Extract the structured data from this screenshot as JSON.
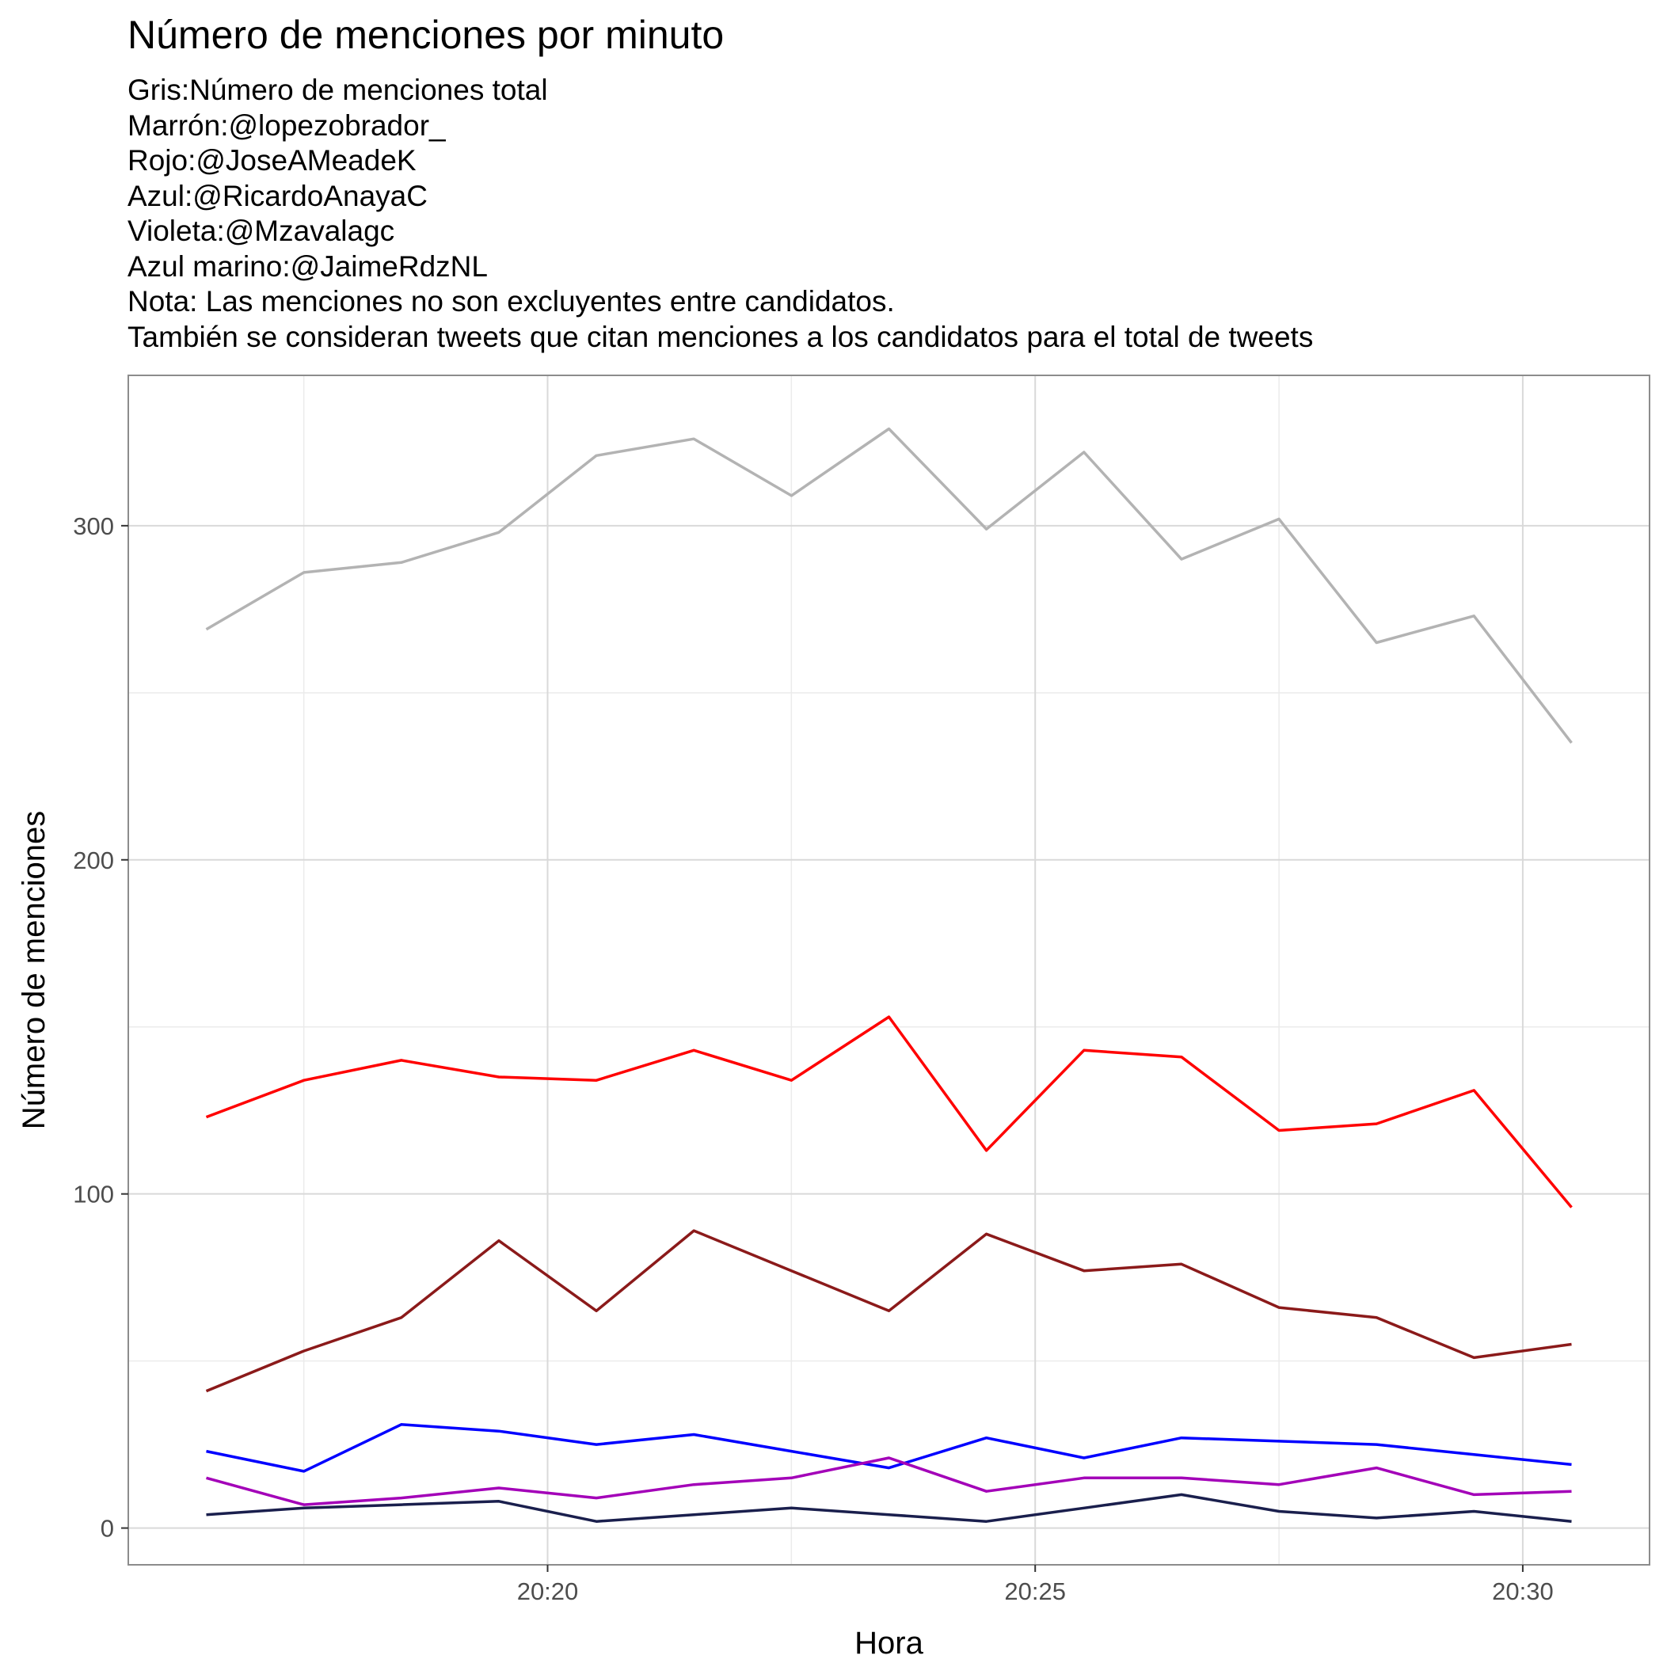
{
  "chart_data": {
    "type": "line",
    "title": "Número de menciones por minuto",
    "subtitle_lines": [
      "Gris:Número de menciones total",
      "Marrón:@lopezobrador_",
      "Rojo:@JoseAMeadeK",
      "Azul:@RicardoAnayaC",
      "Violeta:@Mzavalagc",
      "Azul marino:@JaimeRdzNL",
      "Nota: Las menciones no son excluyentes entre candidatos.",
      "También se consideran tweets que citan menciones a los candidatos para el total de tweets"
    ],
    "xlabel": "Hora",
    "ylabel": "Número de menciones",
    "x_unit": "minutes",
    "x": [
      "20:16:30",
      "20:17:30",
      "20:18:30",
      "20:19:30",
      "20:20:30",
      "20:21:30",
      "20:22:30",
      "20:23:30",
      "20:24:30",
      "20:25:30",
      "20:26:30",
      "20:27:30",
      "20:28:30",
      "20:29:30",
      "20:30:30"
    ],
    "x_minutes": [
      16.5,
      17.5,
      18.5,
      19.5,
      20.5,
      21.5,
      22.5,
      23.5,
      24.5,
      25.5,
      26.5,
      27.5,
      28.5,
      29.5,
      30.5
    ],
    "xlim_minutes": [
      15.7,
      31.3
    ],
    "x_ticks_minutes": [
      20,
      25,
      30
    ],
    "x_ticks": [
      "20:20",
      "20:25",
      "20:30"
    ],
    "ylim": [
      -11,
      345
    ],
    "y_ticks": [
      0,
      100,
      200,
      300
    ],
    "grid": true,
    "series": [
      {
        "color": "#b3b3b3",
        "values": [
          269,
          286,
          289,
          298,
          321,
          326,
          309,
          329,
          299,
          322,
          290,
          302,
          265,
          273,
          235
        ]
      },
      {
        "color": "#ff0000",
        "values": [
          123,
          134,
          140,
          135,
          134,
          143,
          134,
          153,
          113,
          143,
          141,
          119,
          121,
          131,
          96
        ]
      },
      {
        "color": "#8b1a1a",
        "values": [
          41,
          53,
          63,
          86,
          65,
          89,
          77,
          65,
          88,
          77,
          79,
          66,
          63,
          51,
          55
        ]
      },
      {
        "color": "#0000ff",
        "values": [
          23,
          17,
          31,
          29,
          25,
          28,
          23,
          18,
          27,
          21,
          27,
          26,
          25,
          22,
          19
        ]
      },
      {
        "color": "#a300b8",
        "values": [
          15,
          7,
          9,
          12,
          9,
          13,
          15,
          21,
          11,
          15,
          15,
          13,
          18,
          10,
          11
        ]
      },
      {
        "color": "#1a1f4d",
        "values": [
          4,
          6,
          7,
          8,
          2,
          4,
          6,
          4,
          2,
          6,
          10,
          5,
          3,
          5,
          2
        ]
      }
    ]
  }
}
